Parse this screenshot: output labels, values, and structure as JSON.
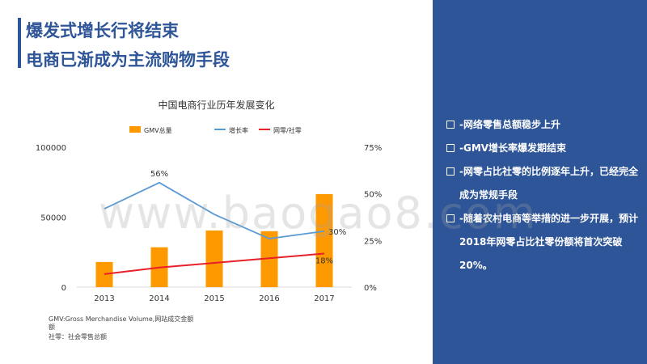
{
  "header": {
    "title_line1": "爆发式增长行将结束",
    "title_line2": "电商已渐成为主流购物手段"
  },
  "chart_data": {
    "type": "bar",
    "title": "中国电商行业历年发展变化",
    "categories": [
      "2013",
      "2014",
      "2015",
      "2016",
      "2017"
    ],
    "series": [
      {
        "name": "GMV总量",
        "type": "bar",
        "axis": "left",
        "color": "#ff9900",
        "values": [
          18000,
          28500,
          40500,
          40000,
          66500
        ]
      },
      {
        "name": "增长率",
        "type": "line",
        "axis": "right",
        "color": "#5b9bd5",
        "values": [
          0.42,
          0.56,
          0.39,
          0.26,
          0.3
        ]
      },
      {
        "name": "网零/社零",
        "type": "line",
        "axis": "right",
        "color": "#e8202a",
        "values": [
          0.07,
          0.105,
          0.13,
          0.155,
          0.18
        ]
      }
    ],
    "y_left": {
      "min": 0,
      "max": 100000,
      "ticks": [
        "0",
        "50000",
        "100000"
      ]
    },
    "y_right": {
      "min": 0,
      "max": 0.75,
      "ticks": [
        "0%",
        "25%",
        "50%",
        "75%"
      ]
    },
    "data_labels": [
      {
        "series": "增长率",
        "category": "2014",
        "text": "56%"
      },
      {
        "series": "增长率",
        "category": "2017",
        "text": "30%"
      },
      {
        "series": "网零/社零",
        "category": "2017",
        "text": "18%"
      }
    ],
    "legend_position": "top"
  },
  "footnotes": {
    "line1": "GMV:Gross Merchandise Volume,网站成交金额",
    "line2": "额",
    "line3": "社零：社会零售总额"
  },
  "panel": {
    "bullets": [
      "-网络零售总额稳步上升",
      "-GMV增长率爆发期结束",
      "-网零占比社零的比例逐年上升，已经完全成为常规手段",
      "-随着农村电商等举措的进一步开展，预计2018年网零占比社零份额将首次突破20%。"
    ]
  },
  "watermark": "www.baogao8.com",
  "colors": {
    "brand": "#2e5597",
    "bar": "#ff9900",
    "growth": "#5b9bd5",
    "share": "#e8202a"
  }
}
